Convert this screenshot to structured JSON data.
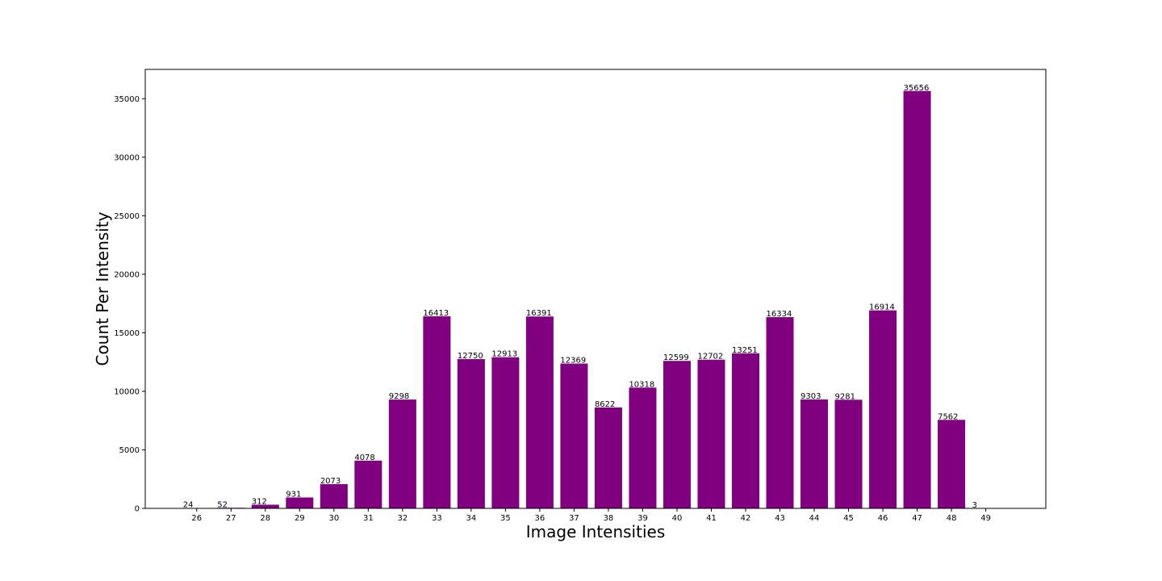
{
  "chart_data": {
    "type": "bar",
    "title": "",
    "xlabel": "Image Intensities",
    "ylabel": "Count Per Intensity",
    "categories": [
      "26",
      "27",
      "28",
      "29",
      "30",
      "31",
      "32",
      "33",
      "34",
      "35",
      "36",
      "37",
      "38",
      "39",
      "40",
      "41",
      "42",
      "43",
      "44",
      "45",
      "46",
      "47",
      "48",
      "49"
    ],
    "values": [
      24,
      52,
      312,
      931,
      2073,
      4078,
      9298,
      16413,
      12750,
      12913,
      16391,
      12369,
      8622,
      10318,
      12599,
      12702,
      13251,
      16334,
      9303,
      9281,
      16914,
      35656,
      7562,
      3
    ],
    "data_labels": [
      "24",
      "52",
      "312",
      "931",
      "2073",
      "4078",
      "9298",
      "16413",
      "12750",
      "12913",
      "16391",
      "12369",
      "8622",
      "10318",
      "12599",
      "12702",
      "13251",
      "16334",
      "9303",
      "9281",
      "16914",
      "35656",
      "7562",
      "3"
    ],
    "ylim": [
      0,
      37500
    ],
    "xlim": [
      24.5,
      50.75
    ],
    "y_ticks": [
      0,
      5000,
      10000,
      15000,
      20000,
      25000,
      30000,
      35000
    ],
    "y_tick_labels": [
      "0",
      "5000",
      "10000",
      "15000",
      "20000",
      "25000",
      "30000",
      "35000"
    ],
    "grid": false,
    "legend": "none",
    "colors": {
      "bar": "#800080",
      "axis": "#000000",
      "background": "#ffffff"
    }
  }
}
